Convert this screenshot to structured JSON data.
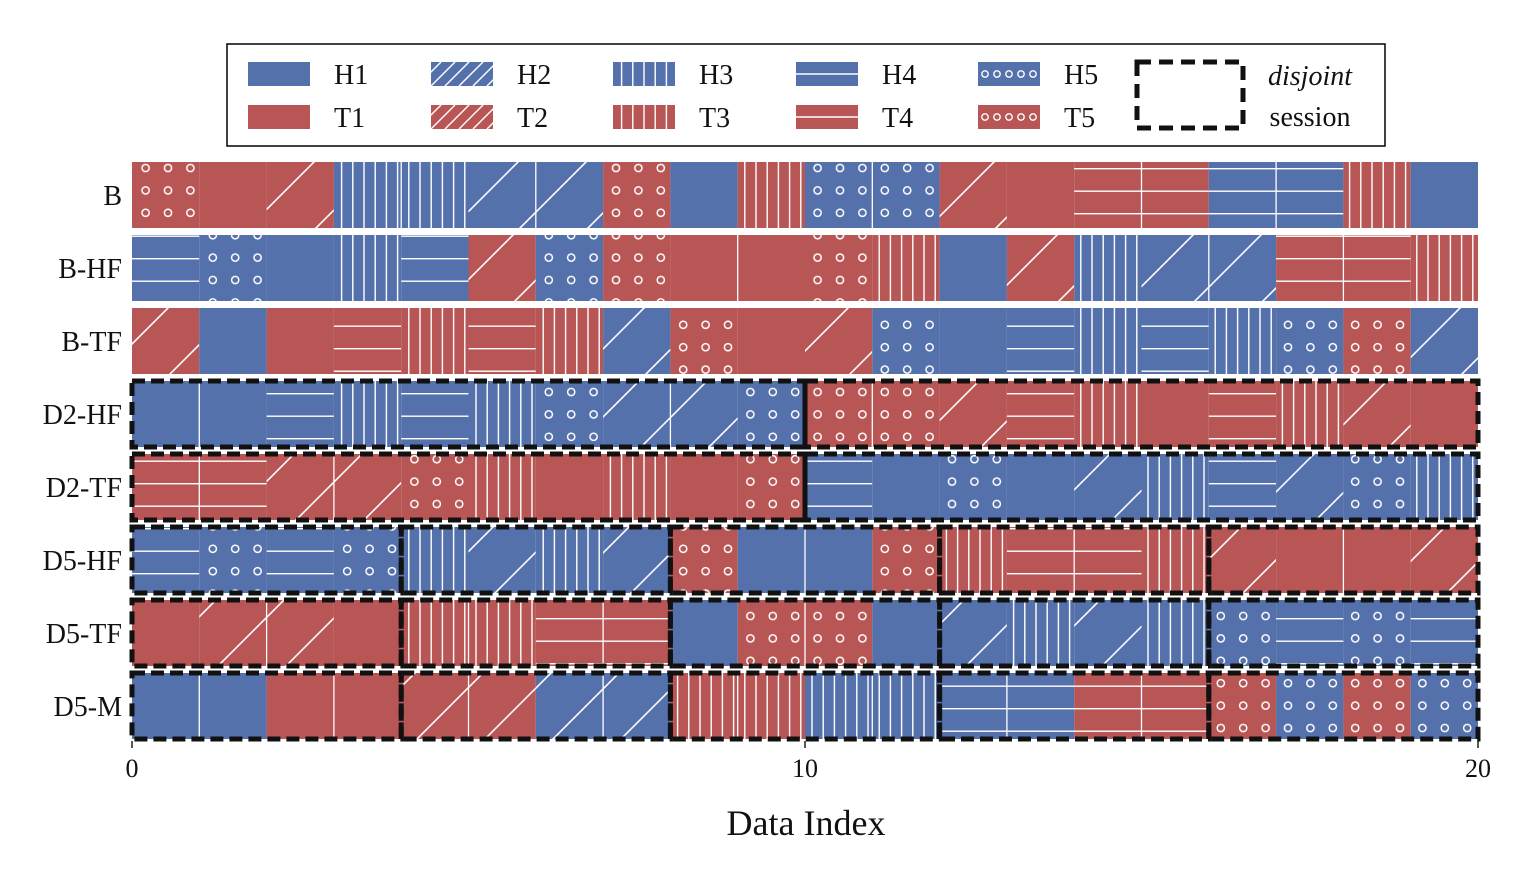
{
  "chart_data": {
    "type": "bar",
    "orientation": "horizontal-stacked-segments",
    "title": "",
    "xlabel": "Data Index",
    "ylabel": "",
    "xlim": [
      0,
      20
    ],
    "xticks": [
      {
        "value": 0,
        "label": "0"
      },
      {
        "value": 10,
        "label": "10"
      },
      {
        "value": 20,
        "label": "20"
      }
    ],
    "grid": false,
    "colors": {
      "H": "#5471ab",
      "T": "#b85555"
    },
    "legend": {
      "placement": "top",
      "entries": [
        {
          "code": "H1",
          "label": "H1"
        },
        {
          "code": "H2",
          "label": "H2"
        },
        {
          "code": "H3",
          "label": "H3"
        },
        {
          "code": "H4",
          "label": "H4"
        },
        {
          "code": "H5",
          "label": "H5"
        },
        {
          "code": "T1",
          "label": "T1"
        },
        {
          "code": "T2",
          "label": "T2"
        },
        {
          "code": "T3",
          "label": "T3"
        },
        {
          "code": "T4",
          "label": "T4"
        },
        {
          "code": "T5",
          "label": "T5"
        }
      ],
      "session_label_line1": "disjoint",
      "session_label_line2": "session"
    },
    "rows": [
      {
        "label": "B",
        "cells": [
          "T5",
          "T1",
          "T2",
          "H3",
          "H3",
          "H2",
          "H2",
          "T5",
          "H1",
          "T3",
          "H5",
          "H5",
          "T2",
          "T1",
          "T4",
          "T4",
          "H4",
          "H4",
          "T3",
          "H1"
        ],
        "sessions": []
      },
      {
        "label": "B-HF",
        "cells": [
          "H4",
          "H5",
          "H1",
          "H3",
          "H4",
          "T2",
          "H5",
          "T5",
          "T1",
          "T1",
          "T5",
          "T3",
          "H1",
          "T2",
          "H3",
          "H2",
          "H2",
          "T4",
          "T4",
          "T3"
        ],
        "sessions": []
      },
      {
        "label": "B-TF",
        "cells": [
          "T2",
          "H1",
          "T1",
          "T4",
          "T3",
          "T4",
          "T3",
          "H2",
          "T5",
          "T1",
          "T2",
          "H5",
          "H1",
          "H4",
          "H3",
          "H4",
          "H3",
          "H5",
          "T5",
          "H2"
        ],
        "sessions": []
      },
      {
        "label": "D2-HF",
        "cells": [
          "H1",
          "H1",
          "H4",
          "H3",
          "H4",
          "H3",
          "H5",
          "H2",
          "H2",
          "H5",
          "T5",
          "T5",
          "T2",
          "T4",
          "T3",
          "T1",
          "T4",
          "T3",
          "T2",
          "T1"
        ],
        "sessions": [
          [
            0,
            10
          ],
          [
            10,
            20
          ]
        ]
      },
      {
        "label": "D2-TF",
        "cells": [
          "T4",
          "T4",
          "T2",
          "T2",
          "T5",
          "T3",
          "T1",
          "T3",
          "T1",
          "T5",
          "H4",
          "H1",
          "H5",
          "H1",
          "H2",
          "H3",
          "H4",
          "H2",
          "H5",
          "H3"
        ],
        "sessions": [
          [
            0,
            10
          ],
          [
            10,
            20
          ]
        ]
      },
      {
        "label": "D5-HF",
        "cells": [
          "H4",
          "H5",
          "H4",
          "H5",
          "H3",
          "H2",
          "H3",
          "H2",
          "T5",
          "H1",
          "H1",
          "T5",
          "T3",
          "T4",
          "T4",
          "T3",
          "T2",
          "T1",
          "T1",
          "T2"
        ],
        "sessions": [
          [
            0,
            4
          ],
          [
            4,
            8
          ],
          [
            8,
            12
          ],
          [
            12,
            16
          ],
          [
            16,
            20
          ]
        ]
      },
      {
        "label": "D5-TF",
        "cells": [
          "T1",
          "T2",
          "T2",
          "T1",
          "T3",
          "T3",
          "T4",
          "T4",
          "H1",
          "T5",
          "T5",
          "H1",
          "H2",
          "H3",
          "H2",
          "H3",
          "H5",
          "H4",
          "H5",
          "H4"
        ],
        "sessions": [
          [
            0,
            4
          ],
          [
            4,
            8
          ],
          [
            8,
            12
          ],
          [
            12,
            16
          ],
          [
            16,
            20
          ]
        ]
      },
      {
        "label": "D5-M",
        "cells": [
          "H1",
          "H1",
          "T1",
          "T1",
          "T2",
          "T2",
          "H2",
          "H2",
          "T3",
          "T3",
          "H3",
          "H3",
          "H4",
          "H4",
          "T4",
          "T4",
          "T5",
          "H5",
          "T5",
          "H5"
        ],
        "sessions": [
          [
            0,
            4
          ],
          [
            4,
            8
          ],
          [
            8,
            12
          ],
          [
            12,
            16
          ],
          [
            16,
            20
          ]
        ]
      }
    ]
  }
}
